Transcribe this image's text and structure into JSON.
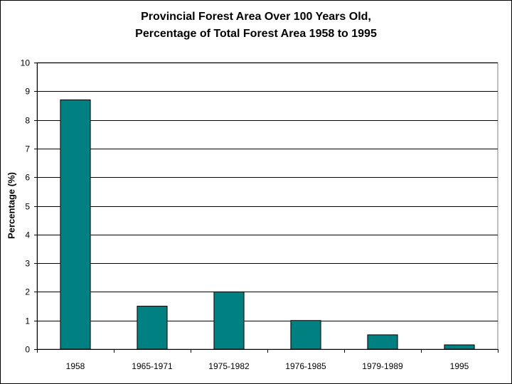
{
  "chart_data": {
    "type": "bar",
    "title": "Provincial Forest Area Over 100 Years Old,",
    "subtitle": "Percentage of Total Forest Area 1958 to 1995",
    "xlabel": "",
    "ylabel": "Percentage (%)",
    "categories": [
      "1958",
      "1965-1971",
      "1975-1982",
      "1976-1985",
      "1979-1989",
      "1995"
    ],
    "values": [
      8.7,
      1.5,
      2.0,
      1.0,
      0.5,
      0.15
    ],
    "ylim": [
      0,
      10
    ],
    "yticks": [
      "0",
      "1",
      "2",
      "3",
      "4",
      "5",
      "6",
      "7",
      "8",
      "9",
      "10"
    ],
    "grid": true,
    "legend": "none",
    "colors": {
      "bar": "#008080",
      "bar_stroke": "#000000",
      "plot_background": "#ffffff",
      "gridline": "#000000"
    }
  }
}
